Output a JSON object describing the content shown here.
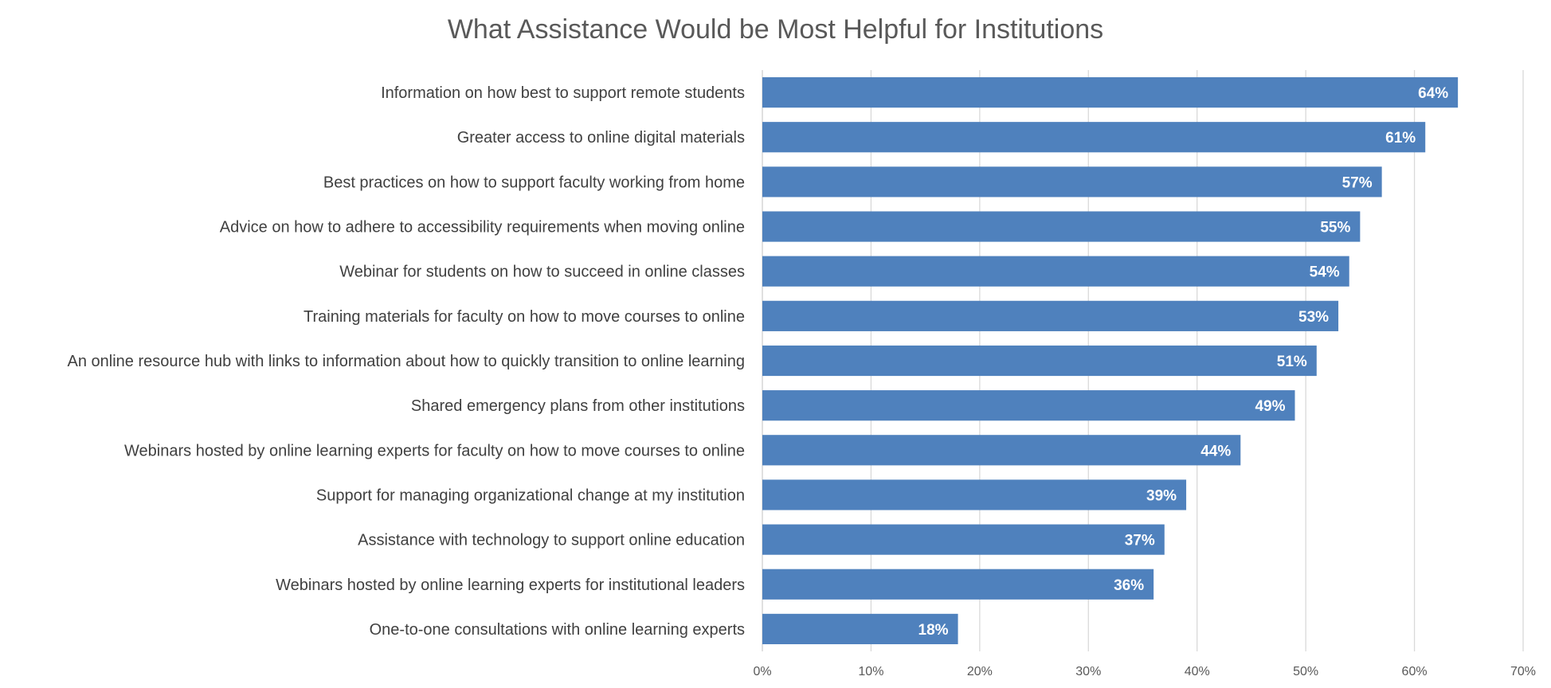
{
  "chart_data": {
    "type": "bar",
    "orientation": "horizontal",
    "title": "What Assistance Would be Most Helpful for Institutions",
    "categories": [
      "Information on how best to support remote students",
      "Greater access to online digital materials",
      "Best practices on how to support faculty working from home",
      "Advice on how to adhere to accessibility requirements when moving online",
      "Webinar for students on how to succeed in online classes",
      "Training materials for faculty on how to move courses to online",
      "An online resource hub with links to information about how to quickly transition to online learning",
      "Shared emergency plans from other institutions",
      "Webinars hosted by online learning experts for faculty on how to move courses to online",
      "Support for managing organizational change at my institution",
      "Assistance with technology to support online education",
      "Webinars hosted by online learning experts for institutional leaders",
      "One-to-one consultations with online learning experts"
    ],
    "values": [
      64,
      61,
      57,
      55,
      54,
      53,
      51,
      49,
      44,
      39,
      37,
      36,
      18
    ],
    "data_labels": [
      "64%",
      "61%",
      "57%",
      "55%",
      "54%",
      "53%",
      "51%",
      "49%",
      "44%",
      "39%",
      "37%",
      "36%",
      "18%"
    ],
    "xlim": [
      0,
      70
    ],
    "xticks": [
      0,
      10,
      20,
      30,
      40,
      50,
      60,
      70
    ],
    "xtick_labels": [
      "0%",
      "10%",
      "20%",
      "30%",
      "40%",
      "50%",
      "60%",
      "70%"
    ],
    "xlabel": "",
    "ylabel": "",
    "grid": "vertical",
    "legend": "none",
    "bar_color": "#4f81bd",
    "grid_color": "#d9d9d9"
  }
}
